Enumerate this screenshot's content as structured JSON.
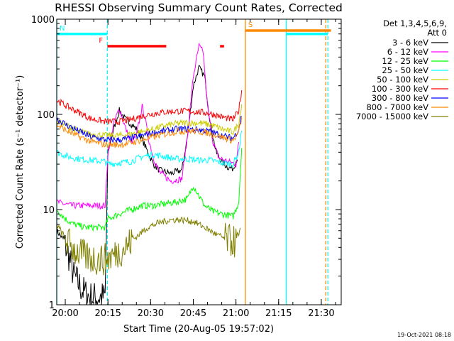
{
  "chart_data": {
    "type": "line",
    "title": "RHESSI Observing Summary Count Rates, Corrected",
    "xlabel": "Start Time (20-Aug-05 19:57:02)",
    "ylabel": "Corrected Count Rate (s⁻¹ detector⁻¹)",
    "xlim_minutes": [
      0,
      100
    ],
    "ylim": [
      1,
      1000
    ],
    "yscale": "log",
    "grid": false,
    "legend_position": "right",
    "timestamp": "19-Oct-2021 08:18",
    "x_ticks": [
      {
        "label": "20:00",
        "minutes": 3
      },
      {
        "label": "20:15",
        "minutes": 18
      },
      {
        "label": "20:30",
        "minutes": 33
      },
      {
        "label": "20:45",
        "minutes": 48
      },
      {
        "label": "21:00",
        "minutes": 63
      },
      {
        "label": "21:15",
        "minutes": 78
      },
      {
        "label": "21:30",
        "minutes": 93
      }
    ],
    "y_ticks": [
      {
        "label": "1",
        "value": 1
      },
      {
        "label": "10",
        "value": 10
      },
      {
        "label": "100",
        "value": 100
      },
      {
        "label": "1000",
        "value": 1000
      }
    ],
    "legend_header": [
      "Det 1,3,4,5,6,9,",
      "Att 0"
    ],
    "series": [
      {
        "name": "3 - 6 keV",
        "color": "#000000",
        "points": [
          [
            0,
            6
          ],
          [
            2,
            5
          ],
          [
            4,
            3.5
          ],
          [
            6,
            2
          ],
          [
            8,
            1.6
          ],
          [
            10,
            1.3
          ],
          [
            12,
            1.2
          ],
          [
            14,
            1.2
          ],
          [
            17,
            1.2
          ],
          [
            18,
            40
          ],
          [
            20,
            70
          ],
          [
            22,
            110
          ],
          [
            24,
            90
          ],
          [
            26,
            80
          ],
          [
            28,
            70
          ],
          [
            30,
            55
          ],
          [
            32,
            40
          ],
          [
            34,
            30
          ],
          [
            36,
            26
          ],
          [
            40,
            24
          ],
          [
            44,
            26
          ],
          [
            46,
            60
          ],
          [
            48,
            200
          ],
          [
            50,
            310
          ],
          [
            52,
            250
          ],
          [
            54,
            80
          ],
          [
            56,
            40
          ],
          [
            58,
            32
          ],
          [
            60,
            28
          ],
          [
            62,
            27
          ],
          [
            63.5,
            35
          ]
        ]
      },
      {
        "name": "6 - 12 keV",
        "color": "#ff00ff",
        "points": [
          [
            0,
            12
          ],
          [
            5,
            11
          ],
          [
            10,
            11
          ],
          [
            17,
            11
          ],
          [
            18,
            40
          ],
          [
            20,
            80
          ],
          [
            22,
            115
          ],
          [
            24,
            75
          ],
          [
            26,
            50
          ],
          [
            28,
            60
          ],
          [
            30,
            120
          ],
          [
            31,
            95
          ],
          [
            32,
            60
          ],
          [
            34,
            35
          ],
          [
            36,
            25
          ],
          [
            40,
            20
          ],
          [
            44,
            21
          ],
          [
            46,
            60
          ],
          [
            48,
            250
          ],
          [
            50,
            520
          ],
          [
            51.5,
            450
          ],
          [
            53,
            120
          ],
          [
            55,
            50
          ],
          [
            57,
            35
          ],
          [
            60,
            32
          ],
          [
            63,
            30
          ],
          [
            64,
            50
          ]
        ]
      },
      {
        "name": "12 - 25 keV",
        "color": "#00ff00",
        "points": [
          [
            0,
            10
          ],
          [
            3,
            8
          ],
          [
            6,
            7
          ],
          [
            10,
            6.5
          ],
          [
            17,
            6.5
          ],
          [
            18,
            8
          ],
          [
            22,
            9
          ],
          [
            26,
            10
          ],
          [
            30,
            11
          ],
          [
            34,
            11
          ],
          [
            38,
            11.5
          ],
          [
            42,
            12
          ],
          [
            46,
            13
          ],
          [
            48,
            18
          ],
          [
            50,
            14
          ],
          [
            52,
            11
          ],
          [
            55,
            9.5
          ],
          [
            58,
            9
          ],
          [
            62,
            8.5
          ],
          [
            64,
            12
          ],
          [
            65,
            45
          ]
        ]
      },
      {
        "name": "25 - 50 keV",
        "color": "#00ffff",
        "points": [
          [
            0,
            40
          ],
          [
            4,
            36
          ],
          [
            8,
            34
          ],
          [
            12,
            33
          ],
          [
            17,
            32
          ],
          [
            18,
            30
          ],
          [
            22,
            31
          ],
          [
            26,
            32
          ],
          [
            30,
            36
          ],
          [
            34,
            38
          ],
          [
            38,
            36
          ],
          [
            42,
            34
          ],
          [
            46,
            34
          ],
          [
            50,
            33
          ],
          [
            54,
            33
          ],
          [
            58,
            31
          ],
          [
            62,
            30
          ],
          [
            64,
            40
          ],
          [
            65,
            70
          ]
        ]
      },
      {
        "name": "50 - 100 keV",
        "color": "#cccc00",
        "points": [
          [
            0,
            85
          ],
          [
            4,
            75
          ],
          [
            8,
            66
          ],
          [
            12,
            62
          ],
          [
            17,
            60
          ],
          [
            22,
            60
          ],
          [
            26,
            62
          ],
          [
            30,
            66
          ],
          [
            34,
            70
          ],
          [
            38,
            76
          ],
          [
            42,
            80
          ],
          [
            46,
            82
          ],
          [
            50,
            81
          ],
          [
            54,
            78
          ],
          [
            58,
            70
          ],
          [
            62,
            65
          ],
          [
            64,
            80
          ],
          [
            65,
            130
          ]
        ]
      },
      {
        "name": "100 - 300 keV",
        "color": "#ff0000",
        "points": [
          [
            0,
            140
          ],
          [
            4,
            120
          ],
          [
            8,
            104
          ],
          [
            12,
            90
          ],
          [
            17,
            84
          ],
          [
            22,
            84
          ],
          [
            26,
            88
          ],
          [
            30,
            96
          ],
          [
            34,
            102
          ],
          [
            38,
            106
          ],
          [
            42,
            108
          ],
          [
            46,
            108
          ],
          [
            50,
            106
          ],
          [
            54,
            102
          ],
          [
            58,
            94
          ],
          [
            62,
            88
          ],
          [
            64,
            110
          ],
          [
            65,
            180
          ]
        ]
      },
      {
        "name": "300 - 800 keV",
        "color": "#0000ff",
        "points": [
          [
            0,
            90
          ],
          [
            4,
            76
          ],
          [
            8,
            66
          ],
          [
            12,
            58
          ],
          [
            17,
            54
          ],
          [
            22,
            54
          ],
          [
            26,
            56
          ],
          [
            30,
            60
          ],
          [
            34,
            64
          ],
          [
            38,
            67
          ],
          [
            42,
            70
          ],
          [
            46,
            70
          ],
          [
            50,
            69
          ],
          [
            54,
            66
          ],
          [
            58,
            60
          ],
          [
            62,
            56
          ],
          [
            64,
            70
          ],
          [
            65,
            100
          ]
        ]
      },
      {
        "name": "800 - 7000 keV",
        "color": "#ff8800",
        "points": [
          [
            0,
            78
          ],
          [
            4,
            66
          ],
          [
            8,
            58
          ],
          [
            12,
            52
          ],
          [
            17,
            48
          ],
          [
            22,
            48
          ],
          [
            26,
            50
          ],
          [
            30,
            54
          ],
          [
            34,
            58
          ],
          [
            38,
            62
          ],
          [
            42,
            66
          ],
          [
            46,
            67
          ],
          [
            50,
            66
          ],
          [
            54,
            63
          ],
          [
            58,
            58
          ],
          [
            62,
            53
          ],
          [
            64,
            65
          ],
          [
            65,
            90
          ]
        ]
      },
      {
        "name": "7000 - 15000 keV",
        "color": "#808000",
        "points": [
          [
            0,
            7
          ],
          [
            3,
            5
          ],
          [
            6,
            3.8
          ],
          [
            10,
            3.2
          ],
          [
            14,
            3
          ],
          [
            17,
            3
          ],
          [
            20,
            3.3
          ],
          [
            24,
            4
          ],
          [
            28,
            5.2
          ],
          [
            32,
            6.5
          ],
          [
            36,
            7.3
          ],
          [
            40,
            7.8
          ],
          [
            44,
            7.8
          ],
          [
            48,
            7.5
          ],
          [
            52,
            6.5
          ],
          [
            56,
            5.5
          ],
          [
            60,
            4.8
          ],
          [
            63.5,
            4.5
          ],
          [
            64.5,
            6
          ]
        ]
      }
    ],
    "flags": [
      {
        "label": "N",
        "color": "#00ffff",
        "segments": [
          [
            0,
            17.8
          ],
          [
            80.7,
            95.3
          ]
        ],
        "level": 700
      },
      {
        "label": "F",
        "color": "#ff0000",
        "segments": [
          [
            17.8,
            38.5
          ],
          [
            57.4,
            58.8
          ]
        ],
        "level": 520
      },
      {
        "label": "S",
        "color": "#ff8800",
        "segments": [
          [
            66.3,
            96.4
          ]
        ],
        "level": 760
      }
    ],
    "vlines": [
      {
        "color": "#00ffff",
        "style": "solid",
        "at": 0
      },
      {
        "color": "#00ffff",
        "style": "dashed",
        "at": 17.8
      },
      {
        "color": "#ff8800",
        "style": "solid",
        "at": 66.3
      },
      {
        "color": "#00ffff",
        "style": "solid",
        "at": 80.7
      },
      {
        "color": "#ff8800",
        "style": "dashed",
        "at": 94.6
      },
      {
        "color": "#00ffff",
        "style": "dashed",
        "at": 95.3
      }
    ]
  }
}
